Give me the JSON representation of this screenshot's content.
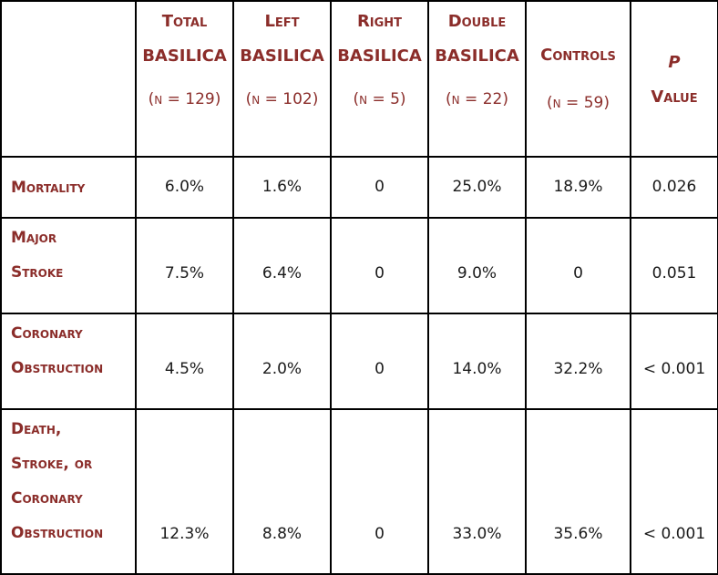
{
  "header": {
    "total": {
      "line1": "Total",
      "line2": "BASILICA",
      "n": "(n = 129)"
    },
    "left": {
      "line1": "Left",
      "line2": "BASILICA",
      "n": "(n = 102)"
    },
    "right": {
      "line1": "Right",
      "line2": "BASILICA",
      "n": "(n = 5)"
    },
    "double": {
      "line1": "Double",
      "line2": "BASILICA",
      "n": "(n = 22)"
    },
    "controls": {
      "line1": "Controls",
      "n": "(n = 59)"
    },
    "pvalue": {
      "line1": "P",
      "line2": "Value"
    }
  },
  "rows": [
    {
      "label_lines": [
        "Mortality"
      ],
      "values": [
        "6.0%",
        "1.6%",
        "0",
        "25.0%",
        "18.9%",
        "0.026"
      ]
    },
    {
      "label_lines": [
        "Major",
        "Stroke"
      ],
      "values": [
        "7.5%",
        "6.4%",
        "0",
        "9.0%",
        "0",
        "0.051"
      ]
    },
    {
      "label_lines": [
        "Coronary",
        "Obstruction"
      ],
      "values": [
        "4.5%",
        "2.0%",
        "0",
        "14.0%",
        "32.2%",
        "< 0.001"
      ]
    },
    {
      "label_lines": [
        "Death,",
        "Stroke, or",
        "Coronary",
        "Obstruction"
      ],
      "values": [
        "12.3%",
        "8.8%",
        "0",
        "33.0%",
        "35.6%",
        "< 0.001"
      ]
    }
  ]
}
